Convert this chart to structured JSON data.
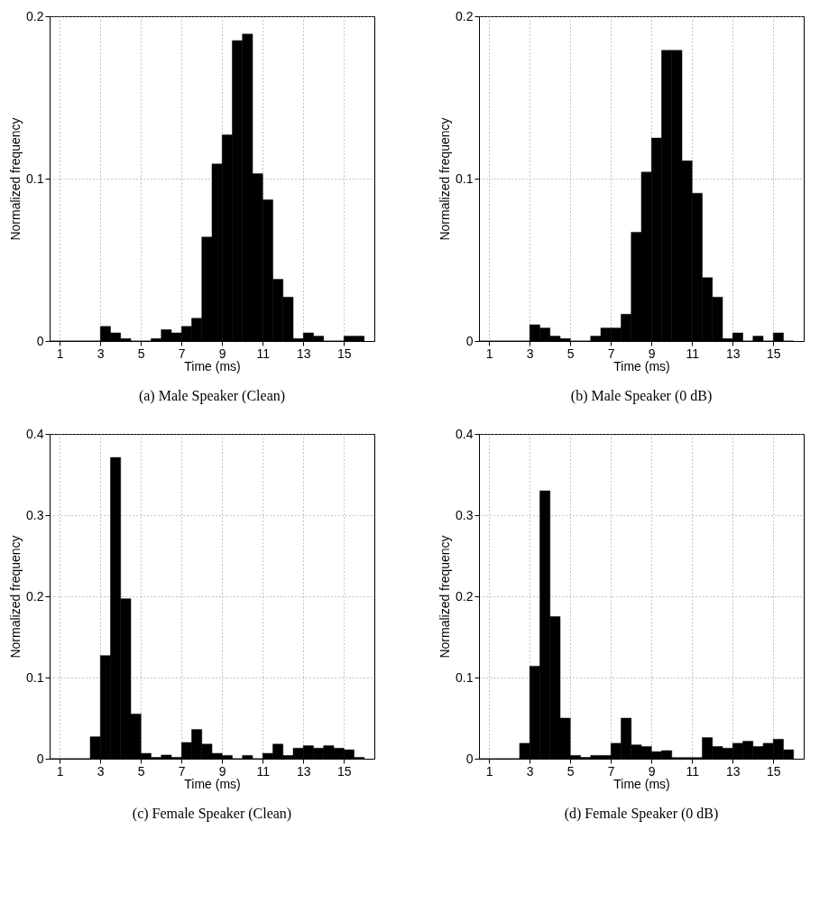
{
  "chart_data": [
    {
      "type": "histogram",
      "title": "(a)  Male Speaker (Clean)",
      "xlabel": "Time (ms)",
      "ylabel": "Normalized frequency",
      "color": "#000000",
      "bins": [
        0.5,
        1.0,
        1.5,
        2.0,
        2.5,
        3.0,
        3.5,
        4.0,
        4.5,
        5.0,
        5.5,
        6.0,
        6.5,
        7.0,
        7.5,
        8.0,
        8.5,
        9.0,
        9.5,
        10.0,
        10.5,
        11.0,
        11.5,
        12.0,
        12.5,
        13.0,
        13.5,
        14.0,
        14.5,
        15.0,
        15.5,
        16.0
      ],
      "values": [
        0,
        0,
        0,
        0,
        0,
        0.009,
        0.005,
        0.0015,
        0,
        0,
        0.0015,
        0.007,
        0.005,
        0.009,
        0.014,
        0.064,
        0.109,
        0.127,
        0.185,
        0.189,
        0.103,
        0.087,
        0.038,
        0.027,
        0.0015,
        0.005,
        0.003,
        0,
        0,
        0.003,
        0.003
      ],
      "xlim": [
        0.5,
        16.5
      ],
      "xticks": [
        1,
        3,
        5,
        7,
        9,
        11,
        13,
        15
      ],
      "ylim": [
        0,
        0.2
      ],
      "yticks": [
        0,
        0.1,
        0.2
      ],
      "grid": true
    },
    {
      "type": "histogram",
      "title": "(b)  Male Speaker (0 dB)",
      "xlabel": "Time (ms)",
      "ylabel": "Normalized frequency",
      "color": "#000000",
      "bins": [
        0.5,
        1.0,
        1.5,
        2.0,
        2.5,
        3.0,
        3.5,
        4.0,
        4.5,
        5.0,
        5.5,
        6.0,
        6.5,
        7.0,
        7.5,
        8.0,
        8.5,
        9.0,
        9.5,
        10.0,
        10.5,
        11.0,
        11.5,
        12.0,
        12.5,
        13.0,
        13.5,
        14.0,
        14.5,
        15.0,
        15.5,
        16.0
      ],
      "values": [
        0,
        0,
        0,
        0,
        0,
        0.01,
        0.008,
        0.003,
        0.0015,
        0,
        0,
        0.003,
        0.008,
        0.008,
        0.0165,
        0.067,
        0.104,
        0.125,
        0.179,
        0.179,
        0.111,
        0.091,
        0.039,
        0.027,
        0.0015,
        0.005,
        0,
        0.003,
        0,
        0.005,
        0
      ],
      "xlim": [
        0.5,
        16.5
      ],
      "xticks": [
        1,
        3,
        5,
        7,
        9,
        11,
        13,
        15
      ],
      "ylim": [
        0,
        0.2
      ],
      "yticks": [
        0,
        0.1,
        0.2
      ],
      "grid": true
    },
    {
      "type": "histogram",
      "title": "(c)  Female Speaker (Clean)",
      "xlabel": "Time (ms)",
      "ylabel": "Normalized frequency",
      "color": "#000000",
      "bins": [
        0.5,
        1.0,
        1.5,
        2.0,
        2.5,
        3.0,
        3.5,
        4.0,
        4.5,
        5.0,
        5.5,
        6.0,
        6.5,
        7.0,
        7.5,
        8.0,
        8.5,
        9.0,
        9.5,
        10.0,
        10.5,
        11.0,
        11.5,
        12.0,
        12.5,
        13.0,
        13.5,
        14.0,
        14.5,
        15.0,
        15.5,
        16.0
      ],
      "values": [
        0,
        0,
        0,
        0,
        0.027,
        0.127,
        0.371,
        0.197,
        0.055,
        0.0066,
        0.0017,
        0.0045,
        0.0017,
        0.02,
        0.036,
        0.018,
        0.0066,
        0.004,
        0,
        0.004,
        0,
        0.0066,
        0.018,
        0.004,
        0.013,
        0.016,
        0.013,
        0.016,
        0.013,
        0.011,
        0.0017
      ],
      "xlim": [
        0.5,
        16.5
      ],
      "xticks": [
        1,
        3,
        5,
        7,
        9,
        11,
        13,
        15
      ],
      "ylim": [
        0,
        0.4
      ],
      "yticks": [
        0,
        0.1,
        0.2,
        0.3,
        0.4
      ],
      "grid": true
    },
    {
      "type": "histogram",
      "title": "(d)  Female Speaker (0 dB)",
      "xlabel": "Time (ms)",
      "ylabel": "Normalized frequency",
      "color": "#000000",
      "bins": [
        0.5,
        1.0,
        1.5,
        2.0,
        2.5,
        3.0,
        3.5,
        4.0,
        4.5,
        5.0,
        5.5,
        6.0,
        6.5,
        7.0,
        7.5,
        8.0,
        8.5,
        9.0,
        9.5,
        10.0,
        10.5,
        11.0,
        11.5,
        12.0,
        12.5,
        13.0,
        13.5,
        14.0,
        14.5,
        15.0,
        15.5,
        16.0
      ],
      "values": [
        0,
        0,
        0,
        0,
        0.019,
        0.114,
        0.33,
        0.175,
        0.05,
        0.004,
        0.0017,
        0.004,
        0.004,
        0.019,
        0.05,
        0.017,
        0.015,
        0.0087,
        0.01,
        0.0014,
        0.0014,
        0.0014,
        0.026,
        0.015,
        0.013,
        0.019,
        0.0215,
        0.015,
        0.019,
        0.024,
        0.011
      ],
      "xlim": [
        0.5,
        16.5
      ],
      "xticks": [
        1,
        3,
        5,
        7,
        9,
        11,
        13,
        15
      ],
      "ylim": [
        0,
        0.4
      ],
      "yticks": [
        0,
        0.1,
        0.2,
        0.3,
        0.4
      ],
      "grid": true
    }
  ]
}
